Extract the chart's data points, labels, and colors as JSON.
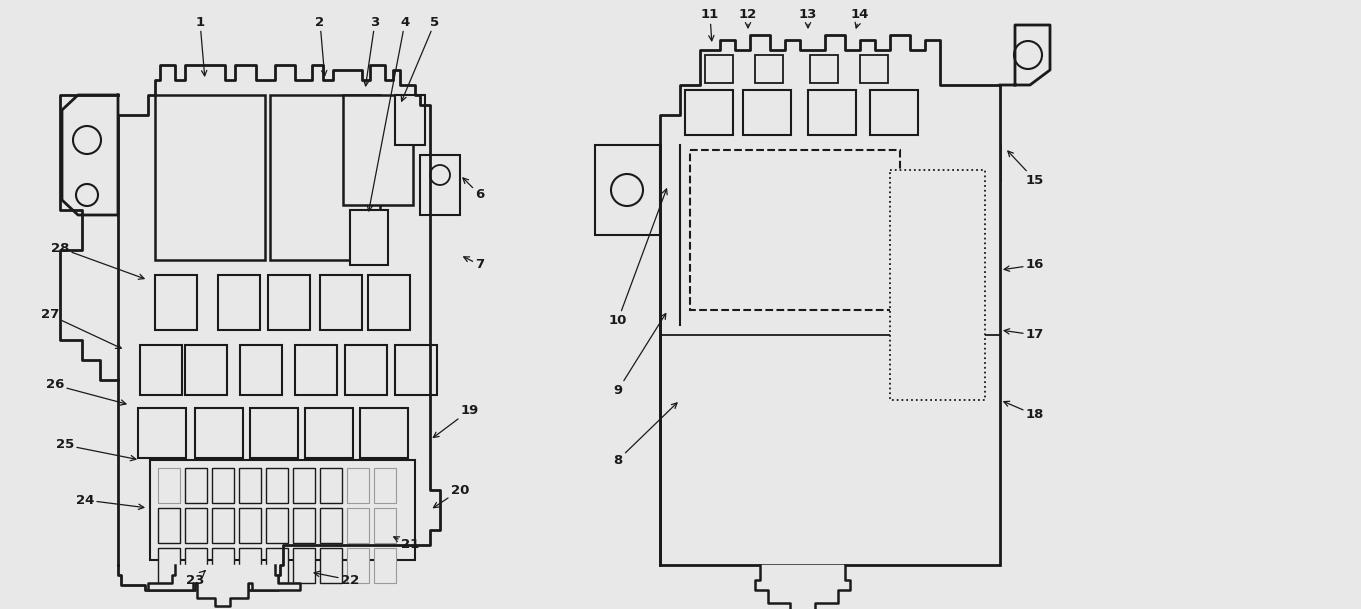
{
  "bg_color": "#e8e8e8",
  "fig_width": 13.61,
  "fig_height": 6.09,
  "dpi": 100,
  "black": "#1a1a1a",
  "gray": "#999999",
  "white": "#e8e8e8"
}
